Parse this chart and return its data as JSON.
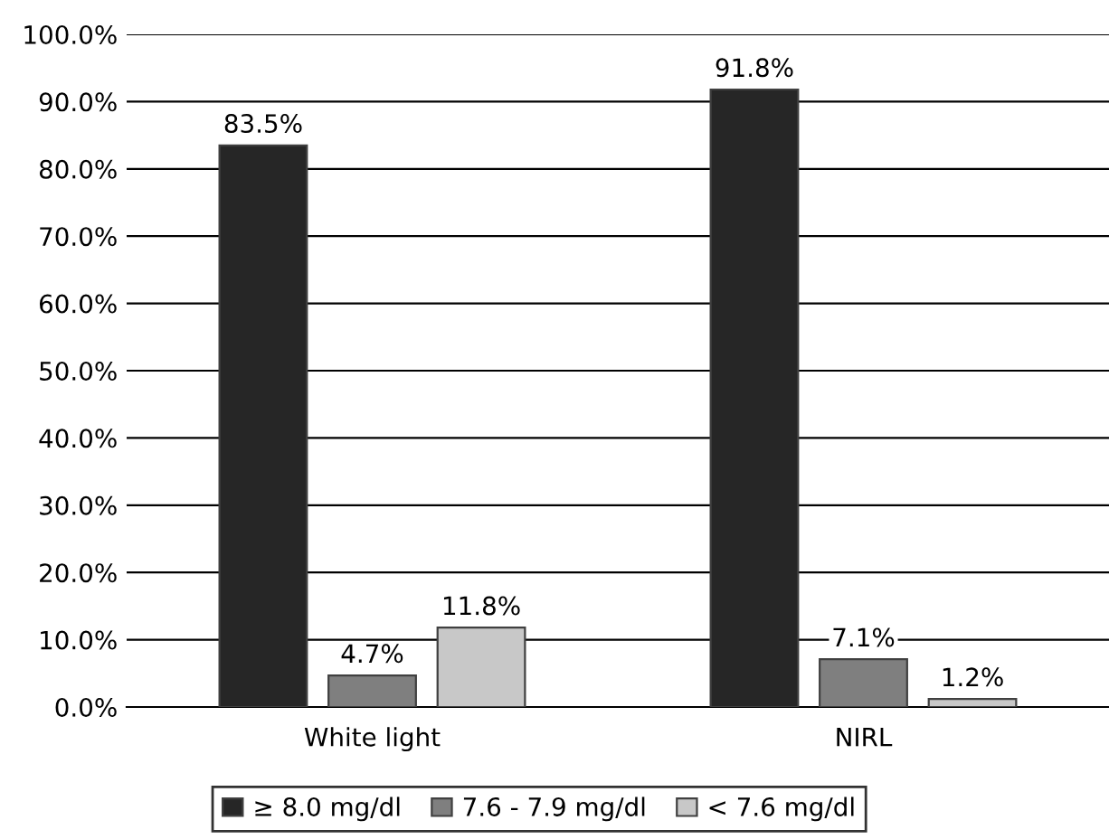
{
  "chart_data": {
    "type": "bar",
    "categories": [
      "White light",
      "NIRL"
    ],
    "series": [
      {
        "name": "≥ 8.0 mg/dl",
        "color": "#262626",
        "values": [
          83.5,
          91.8
        ],
        "value_labels": [
          "83.5%",
          "91.8%"
        ]
      },
      {
        "name": "7.6 - 7.9 mg/dl",
        "color": "#7f7f7f",
        "values": [
          4.7,
          7.1
        ],
        "value_labels": [
          "4.7%",
          "7.1%"
        ]
      },
      {
        "name": "< 7.6 mg/dl",
        "color": "#c8c8c8",
        "values": [
          11.8,
          1.2
        ],
        "value_labels": [
          "11.8%",
          "1.2%"
        ]
      }
    ],
    "ylim": [
      0,
      100
    ],
    "yticks": [
      {
        "value": 0,
        "label": "0.0%"
      },
      {
        "value": 10,
        "label": "10.0%"
      },
      {
        "value": 20,
        "label": "20.0%"
      },
      {
        "value": 30,
        "label": "30.0%"
      },
      {
        "value": 40,
        "label": "40.0%"
      },
      {
        "value": 50,
        "label": "50.0%"
      },
      {
        "value": 60,
        "label": "60.0%"
      },
      {
        "value": 70,
        "label": "70.0%"
      },
      {
        "value": 80,
        "label": "80.0%"
      },
      {
        "value": 90,
        "label": "90.0%"
      },
      {
        "value": 100,
        "label": "100.0%"
      }
    ],
    "grid": "y",
    "legend": "bottom"
  }
}
